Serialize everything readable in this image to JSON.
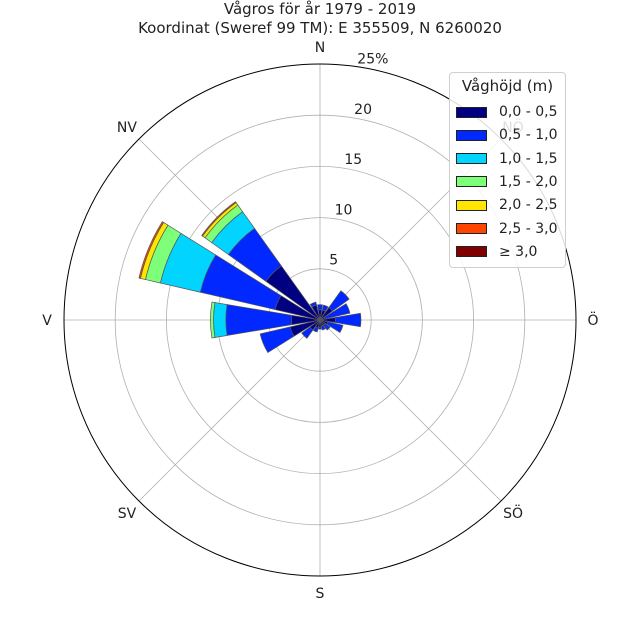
{
  "chart_data": {
    "type": "windrose",
    "title": "Vågros för år 1979 - 2019",
    "subtitle": "Koordinat (Sweref 99 TM): E 355509, N 6260020",
    "directions": [
      "N",
      "NNÖ",
      "NÖ",
      "ÖNÖ",
      "Ö",
      "ÖSÖ",
      "SÖ",
      "SSÖ",
      "S",
      "SSV",
      "SV",
      "VSV",
      "V",
      "VNV",
      "NV",
      "NNV"
    ],
    "direction_labels": [
      "N",
      "NÖ",
      "Ö",
      "SÖ",
      "S",
      "SV",
      "V",
      "NV"
    ],
    "radial_ticks": [
      "5",
      "10",
      "15",
      "20",
      "25%"
    ],
    "rlim": [
      0,
      25
    ],
    "legend_title": "Våghöjd (m)",
    "legend_location": "top-right",
    "series": [
      {
        "name": "0,0 - 0,5",
        "color": "#000080",
        "values": [
          1.0,
          1.0,
          1.5,
          0.5,
          1.5,
          0.8,
          0.6,
          0.6,
          0.7,
          0.8,
          1.2,
          3.0,
          2.8,
          4.5,
          6.5,
          1.5
        ]
      },
      {
        "name": "0,5 - 1,0",
        "color": "#0028ff",
        "values": [
          0.5,
          0.5,
          2.0,
          2.5,
          2.5,
          1.5,
          0.6,
          0.4,
          0.2,
          0.4,
          1.0,
          3.0,
          6.4,
          7.5,
          4.5,
          0.3
        ]
      },
      {
        "name": "1,0 - 1,5",
        "color": "#00d4ff",
        "values": [
          0,
          0,
          0,
          0,
          0,
          0,
          0,
          0,
          0,
          0,
          0,
          0,
          1.2,
          4.0,
          2.0,
          0
        ]
      },
      {
        "name": "1,5 - 2,0",
        "color": "#7dff7a",
        "values": [
          0,
          0,
          0,
          0,
          0,
          0,
          0,
          0,
          0,
          0,
          0,
          0,
          0.3,
          1.5,
          0.8,
          0
        ]
      },
      {
        "name": "2,0 - 2,5",
        "color": "#ffe600",
        "values": [
          0,
          0,
          0,
          0,
          0,
          0,
          0,
          0,
          0,
          0,
          0,
          0,
          0,
          0.5,
          0.3,
          0
        ]
      },
      {
        "name": "2,5 - 3,0",
        "color": "#ff4500",
        "values": [
          0,
          0,
          0,
          0,
          0,
          0,
          0,
          0,
          0,
          0,
          0,
          0,
          0,
          0.15,
          0.1,
          0
        ]
      },
      {
        "name": "≥ 3,0",
        "color": "#800000",
        "values": [
          0,
          0,
          0,
          0,
          0,
          0,
          0,
          0,
          0,
          0,
          0,
          0,
          0,
          0,
          0,
          0
        ]
      }
    ]
  }
}
